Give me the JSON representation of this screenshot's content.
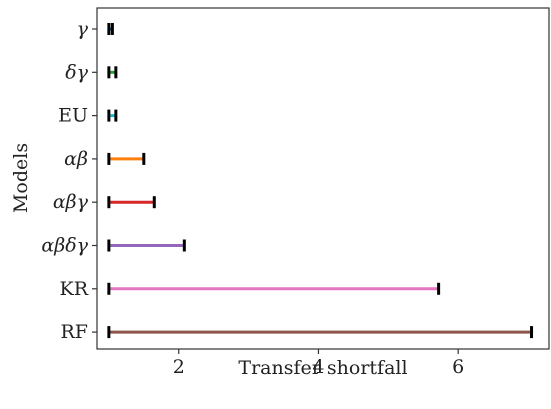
{
  "chart_data": {
    "type": "range",
    "title": "",
    "xlabel": "Transfer shortfall",
    "ylabel": "Models",
    "xlim": [
      0.83,
      7.3
    ],
    "xticks": [
      2,
      4,
      6
    ],
    "xtick_labels": [
      "2",
      "4",
      "6"
    ],
    "grid": false,
    "categories": [
      "γ",
      "δγ",
      "EU",
      "αβ",
      "αβγ",
      "αβδγ",
      "KR",
      "RF"
    ],
    "series": [
      {
        "category": "γ",
        "low": 1.0,
        "high": 1.05,
        "color": "#1f77b4"
      },
      {
        "category": "δγ",
        "low": 1.0,
        "high": 1.1,
        "color": "#2ca02c"
      },
      {
        "category": "EU",
        "low": 1.0,
        "high": 1.1,
        "color": "#17becf"
      },
      {
        "category": "αβ",
        "low": 1.0,
        "high": 1.5,
        "color": "#ff7f0e"
      },
      {
        "category": "αβγ",
        "low": 1.0,
        "high": 1.65,
        "color": "#d62728"
      },
      {
        "category": "αβδγ",
        "low": 1.0,
        "high": 2.08,
        "color": "#9467bd"
      },
      {
        "category": "KR",
        "low": 1.0,
        "high": 5.72,
        "color": "#e377c2"
      },
      {
        "category": "RF",
        "low": 1.0,
        "high": 7.05,
        "color": "#8c564b"
      }
    ]
  }
}
